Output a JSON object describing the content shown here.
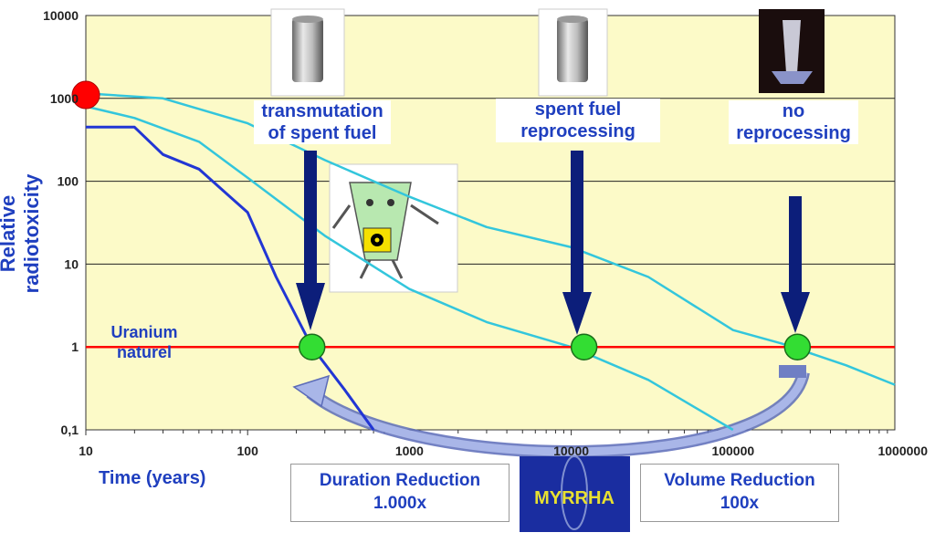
{
  "chart_data": {
    "type": "line",
    "ylabel": "Relative radiotoxicity",
    "xlabel": "Time (years)",
    "xscale": "log",
    "yscale": "log",
    "xlim": [
      10,
      1000000
    ],
    "ylim": [
      0.1,
      10000
    ],
    "x_ticks": [
      "10",
      "100",
      "1000",
      "10000",
      "100000",
      "1000000"
    ],
    "y_ticks": [
      "10000",
      "1000",
      "100",
      "10",
      "1",
      "0,1"
    ],
    "grid": "horizontal",
    "series": [
      {
        "color": "#2236d4",
        "points": [
          [
            10,
            450
          ],
          [
            20,
            450
          ],
          [
            30,
            210
          ],
          [
            50,
            140
          ],
          [
            100,
            42
          ],
          [
            150,
            7
          ],
          [
            250,
            1
          ],
          [
            400,
            0.3
          ],
          [
            600,
            0.1
          ]
        ]
      },
      {
        "color": "#33c6dc",
        "points": [
          [
            10,
            800
          ],
          [
            20,
            580
          ],
          [
            50,
            300
          ],
          [
            100,
            110
          ],
          [
            300,
            22
          ],
          [
            1000,
            5
          ],
          [
            3000,
            2
          ],
          [
            10000,
            1
          ],
          [
            30000,
            0.4
          ],
          [
            100000,
            0.1
          ]
        ]
      },
      {
        "color": "#33c6dc",
        "points": [
          [
            10,
            1150
          ],
          [
            30,
            1000
          ],
          [
            100,
            500
          ],
          [
            300,
            180
          ],
          [
            1000,
            65
          ],
          [
            3000,
            28
          ],
          [
            10000,
            16
          ],
          [
            30000,
            7
          ],
          [
            100000,
            1.6
          ],
          [
            200000,
            1.1
          ],
          [
            500000,
            0.6
          ],
          [
            1000000,
            0.35
          ]
        ]
      }
    ],
    "reference_line": {
      "value": 1,
      "color": "#ff0000",
      "label_line1": "Uranium",
      "label_line2": "naturel"
    },
    "start_marker": {
      "x": 10,
      "y": 1100,
      "color": "#ff0000"
    },
    "markers": [
      {
        "x": 250,
        "y": 1,
        "color": "#33dd33"
      },
      {
        "x": 12000,
        "y": 1,
        "color": "#33dd33"
      },
      {
        "x": 250000,
        "y": 1,
        "color": "#33dd33"
      }
    ],
    "annotations": [
      {
        "line1": "transmutation",
        "line2": "of spent fuel"
      },
      {
        "line1": "spent fuel",
        "line2": "reprocessing"
      },
      {
        "line1": "no",
        "line2": "reprocessing"
      }
    ],
    "boxes": {
      "duration_line1": "Duration Reduction",
      "duration_line2": "1.000x",
      "volume_line1": "Volume Reduction",
      "volume_line2": "100x",
      "logo_text": "MYRRHA"
    },
    "colors": {
      "plot_bg": "#fcfac8",
      "text": "#1f3fbf",
      "arrow": "#0c1e7a"
    }
  }
}
